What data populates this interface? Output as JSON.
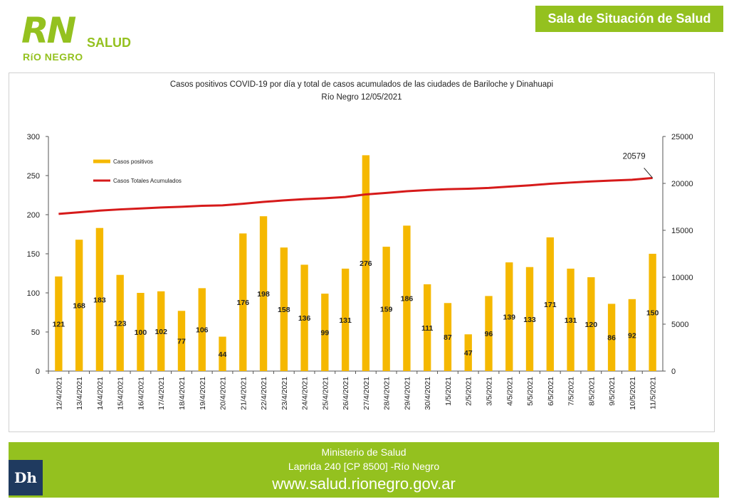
{
  "header": {
    "logo_mark": "RN",
    "logo_word": "SALUD",
    "logo_sub": "RíO NEGRO",
    "sala_label": "Sala de Situación de Salud"
  },
  "chart_data": {
    "type": "bar",
    "title": "Casos positivos COVID-19 por día y total de casos acumulados de las ciudades de Bariloche y Dinahuapi",
    "subtitle": "Río Negro 12/05/2021",
    "categories": [
      "12/4/2021",
      "13/4/2021",
      "14/4/2021",
      "15/4/2021",
      "16/4/2021",
      "17/4/2021",
      "18/4/2021",
      "19/4/2021",
      "20/4/2021",
      "21/4/2021",
      "22/4/2021",
      "23/4/2021",
      "24/4/2021",
      "25/4/2021",
      "26/4/2021",
      "27/4/2021",
      "28/4/2021",
      "29/4/2021",
      "30/4/2021",
      "1/5/2021",
      "2/5/2021",
      "3/5/2021",
      "4/5/2021",
      "5/5/2021",
      "6/5/2021",
      "7/5/2021",
      "8/5/2021",
      "9/5/2021",
      "10/5/2021",
      "11/5/2021"
    ],
    "series": [
      {
        "name": "Casos positivos",
        "type": "bar",
        "axis": "left",
        "color": "#f5b800",
        "values": [
          121,
          168,
          183,
          123,
          100,
          102,
          77,
          106,
          44,
          176,
          198,
          158,
          136,
          99,
          131,
          276,
          159,
          186,
          111,
          87,
          47,
          96,
          139,
          133,
          171,
          131,
          120,
          86,
          92,
          150
        ]
      },
      {
        "name": "Casos Totales Acumulados",
        "type": "line",
        "axis": "right",
        "color": "#d61a1a",
        "values": [
          16750,
          16920,
          17100,
          17230,
          17330,
          17430,
          17510,
          17610,
          17660,
          17830,
          18030,
          18190,
          18320,
          18420,
          18550,
          18830,
          18990,
          19170,
          19290,
          19380,
          19430,
          19520,
          19660,
          19790,
          19960,
          20090,
          20210,
          20300,
          20390,
          20579
        ]
      }
    ],
    "left_axis": {
      "ylim": [
        0,
        300
      ],
      "ticks": [
        "0",
        "50",
        "100",
        "150",
        "200",
        "250",
        "300"
      ]
    },
    "right_axis": {
      "ylim": [
        0,
        25000
      ],
      "ticks": [
        "0",
        "5000",
        "10000",
        "15000",
        "20000",
        "25000"
      ]
    },
    "annotation": "20579",
    "grid": false,
    "legend_position": "top-left"
  },
  "footer": {
    "line1": "Ministerio de Salud",
    "line2": "Laprida 240 [CP 8500] -Río Negro",
    "line3": "www.salud.rionegro.gov.ar",
    "badge": "Dh"
  }
}
